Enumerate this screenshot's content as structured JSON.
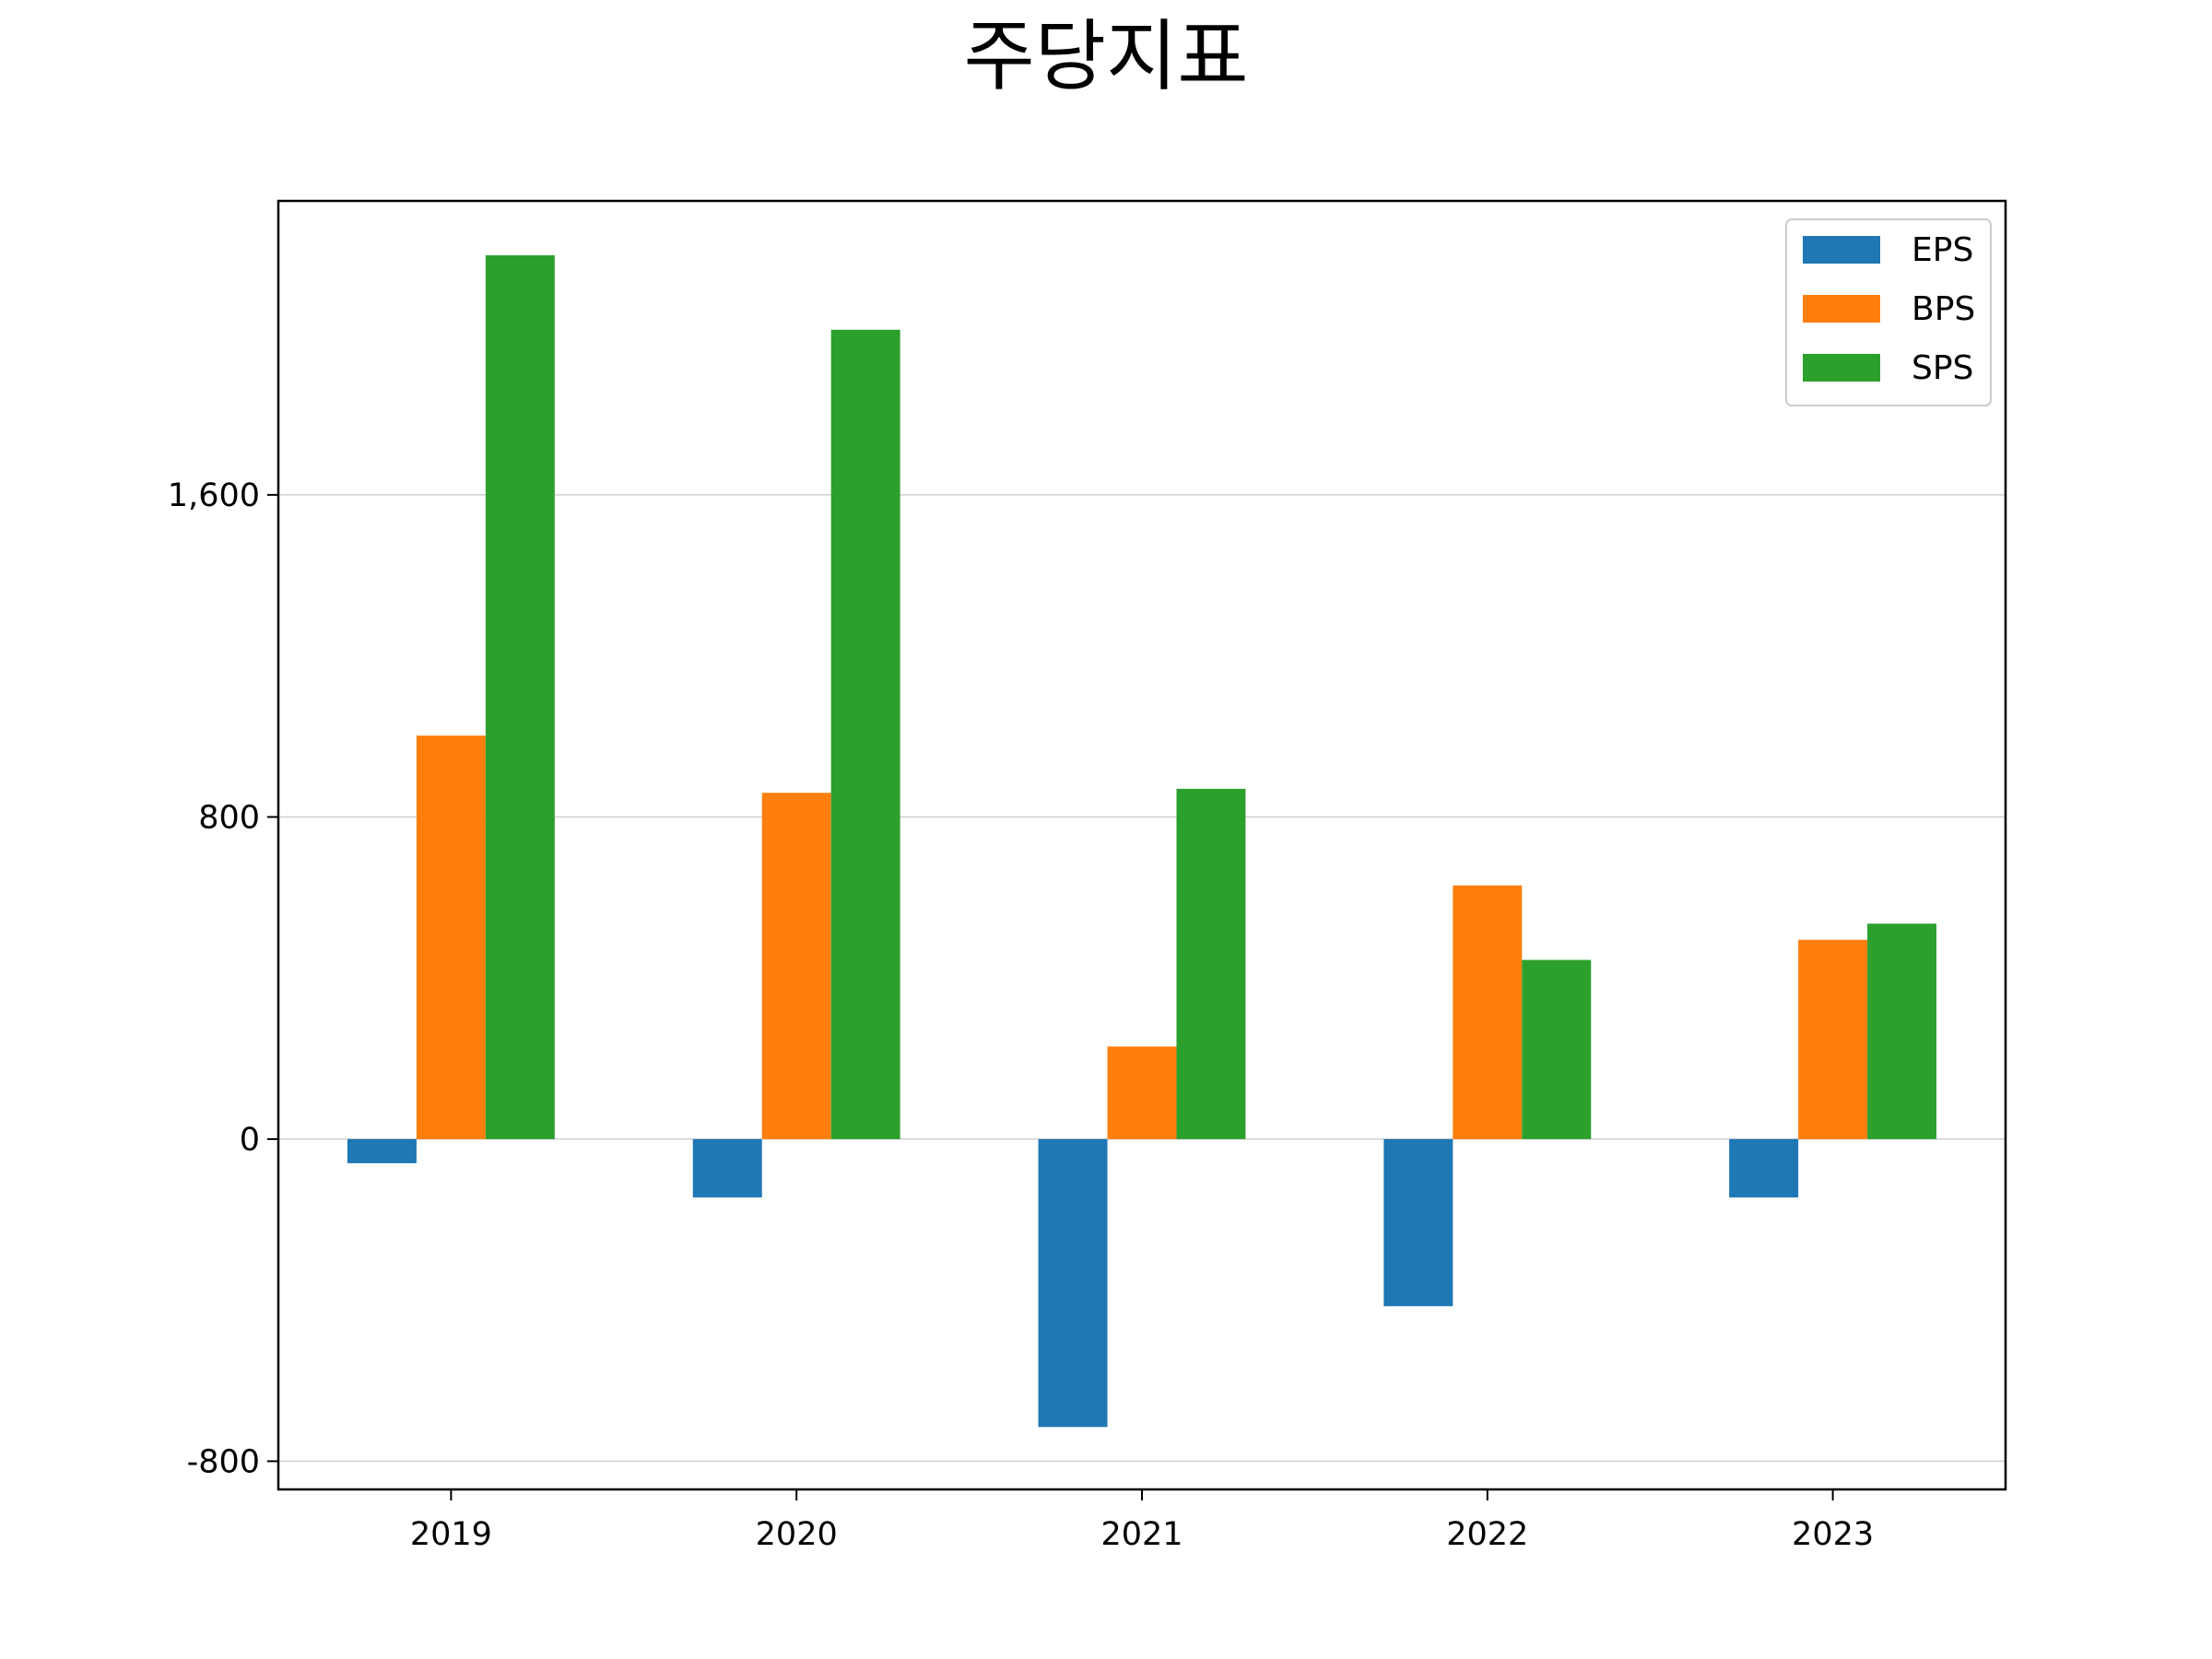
{
  "chart_data": {
    "type": "bar",
    "title": "주당지표",
    "xlabel": "",
    "ylabel": "",
    "categories": [
      "2019",
      "2020",
      "2021",
      "2022",
      "2023"
    ],
    "series": [
      {
        "name": "EPS",
        "color": "#1f77b4",
        "values": [
          -60,
          -145,
          -715,
          -415,
          -145
        ]
      },
      {
        "name": "BPS",
        "color": "#ff7f0e",
        "values": [
          1002,
          860,
          230,
          630,
          495
        ]
      },
      {
        "name": "SPS",
        "color": "#2ca02c",
        "values": [
          2195,
          2010,
          870,
          445,
          535
        ]
      }
    ],
    "ylim": [
      -870,
      2330
    ],
    "yticks": [
      -800,
      0,
      800,
      1600
    ],
    "ytick_labels": [
      "-800",
      "0",
      "800",
      "1,600"
    ],
    "grid": "y",
    "legend_position": "top-right"
  }
}
